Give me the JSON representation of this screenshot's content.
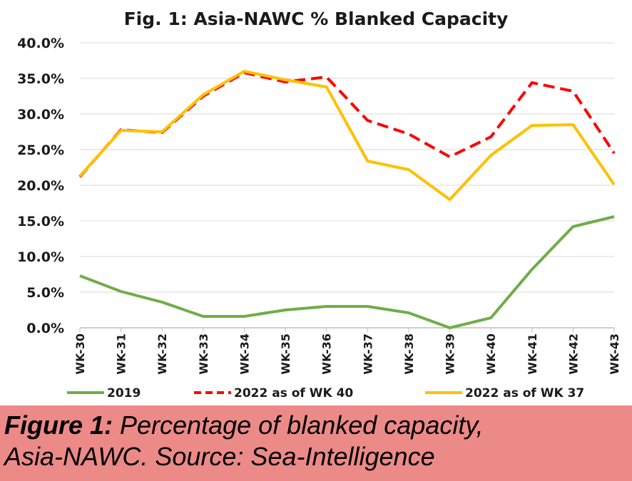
{
  "chart_data": {
    "type": "line",
    "title": "Fig. 1: Asia-NAWC % Blanked Capacity",
    "xlabel": "",
    "ylabel": "",
    "categories": [
      "WK-30",
      "WK-31",
      "WK-32",
      "WK-33",
      "WK-34",
      "WK-35",
      "WK-36",
      "WK-37",
      "WK-38",
      "WK-39",
      "WK-40",
      "WK-41",
      "WK-42",
      "WK-43"
    ],
    "ylim": [
      0,
      40
    ],
    "yticks": [
      "0.0%",
      "5.0%",
      "10.0%",
      "15.0%",
      "20.0%",
      "25.0%",
      "30.0%",
      "35.0%",
      "40.0%"
    ],
    "grid": true,
    "legend_position": "bottom",
    "series": [
      {
        "name": "2019",
        "color": "#70ad47",
        "style": "solid",
        "values": [
          7.3,
          5.1,
          3.6,
          1.6,
          1.6,
          2.5,
          3.0,
          3.0,
          2.1,
          0.0,
          1.4,
          8.2,
          14.2,
          15.6
        ]
      },
      {
        "name": "2022 as of WK 40",
        "color": "#ff0000",
        "style": "dashed",
        "values": [
          21.2,
          27.8,
          27.4,
          32.5,
          35.8,
          34.5,
          35.2,
          29.1,
          27.2,
          24.0,
          26.8,
          34.4,
          33.2,
          24.5
        ]
      },
      {
        "name": "2022 as of WK 37",
        "color": "#ffc000",
        "style": "solid",
        "values": [
          21.3,
          27.7,
          27.5,
          32.7,
          36.0,
          34.8,
          33.8,
          23.4,
          22.2,
          18.0,
          24.2,
          28.4,
          28.5,
          20.1
        ]
      }
    ]
  },
  "caption": {
    "label": "Figure 1:",
    "line1": " Percentage of blanked capacity,",
    "line2": "Asia-NAWC. Source: Sea-Intelligence"
  }
}
